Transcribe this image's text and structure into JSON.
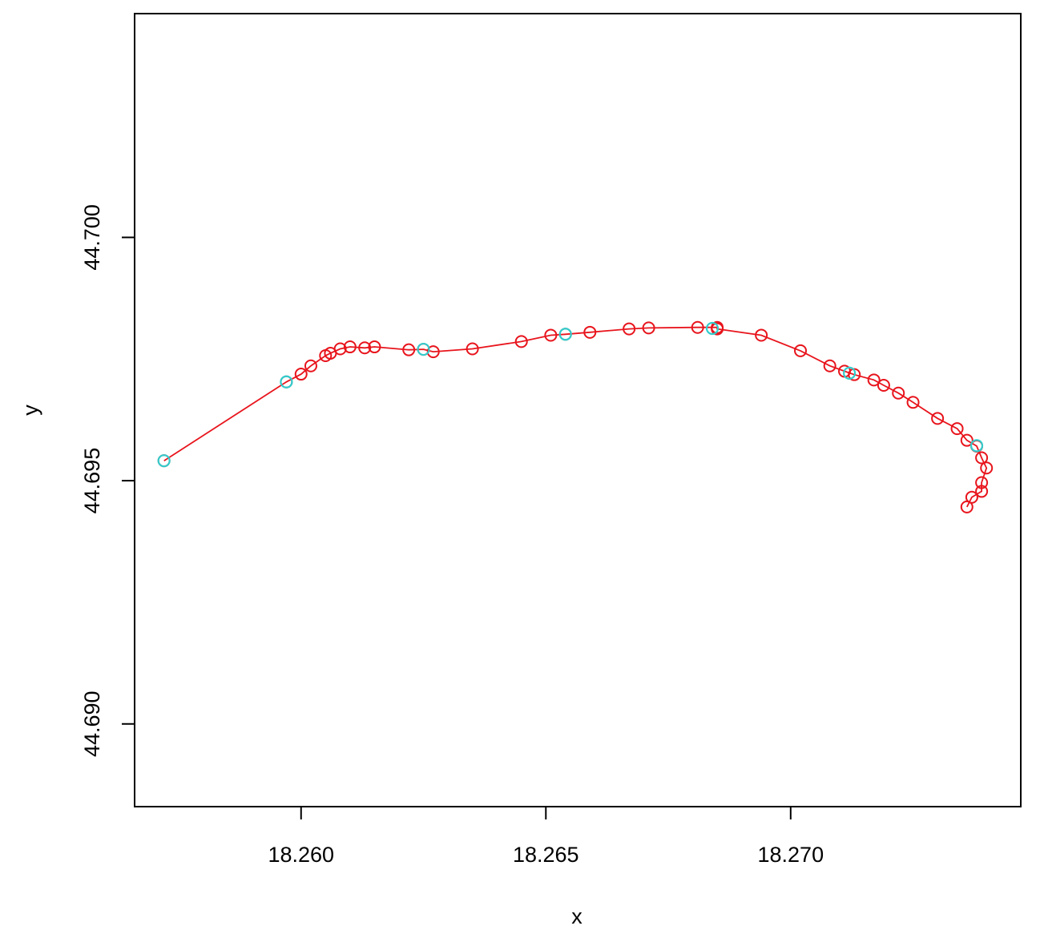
{
  "chart_data": {
    "type": "line",
    "title": "",
    "xlabel": "x",
    "ylabel": "y",
    "xlim": [
      18.2566,
      18.2747
    ],
    "ylim": [
      44.6883,
      44.7046
    ],
    "x_ticks": [
      18.26,
      18.265,
      18.27
    ],
    "x_tick_labels": [
      "18.260",
      "18.265",
      "18.270"
    ],
    "y_ticks": [
      44.69,
      44.695,
      44.7
    ],
    "y_tick_labels": [
      "44.690",
      "44.695",
      "44.700"
    ],
    "grid": false,
    "legend": "none",
    "colors": {
      "track": "#e8141c",
      "highlight": "#33cccc",
      "axis": "#000000"
    },
    "series": [
      {
        "marker": "open-circle",
        "x": [
          18.2572,
          18.2597,
          18.26,
          18.2602,
          18.2605,
          18.2606,
          18.2608,
          18.261,
          18.2613,
          18.2615,
          18.2622,
          18.2625,
          18.2627,
          18.2635,
          18.2645,
          18.2651,
          18.2654,
          18.2659,
          18.2667,
          18.2671,
          18.2681,
          18.2685,
          18.2685,
          18.2694,
          18.2702,
          18.2708,
          18.2711,
          18.2713,
          18.2717,
          18.2719,
          18.2722,
          18.2725,
          18.273,
          18.2734,
          18.2736,
          18.2738,
          18.2739,
          18.274,
          18.2739,
          18.2739,
          18.2737,
          18.2736
        ],
        "y": [
          44.69541,
          44.69703,
          44.69719,
          44.69736,
          44.69757,
          44.69762,
          44.69771,
          44.69775,
          44.69773,
          44.69775,
          44.69769,
          44.6977,
          44.69765,
          44.69771,
          44.69786,
          44.69799,
          44.69801,
          44.69805,
          44.69812,
          44.69814,
          44.69815,
          44.69815,
          44.69812,
          44.69799,
          44.69767,
          44.69736,
          44.69725,
          44.69718,
          44.69707,
          44.69696,
          44.6968,
          44.69661,
          44.69628,
          44.69607,
          44.69583,
          44.69571,
          44.69547,
          44.69526,
          44.69496,
          44.69478,
          44.69466,
          44.69446
        ]
      }
    ],
    "highlight_points": {
      "marker": "open-circle",
      "x": [
        18.2572,
        18.2597,
        18.2625,
        18.2654,
        18.2684,
        18.2712,
        18.2738
      ],
      "y": [
        44.69541,
        44.69703,
        44.6977,
        44.69801,
        44.69813,
        44.69721,
        44.69572
      ]
    }
  }
}
